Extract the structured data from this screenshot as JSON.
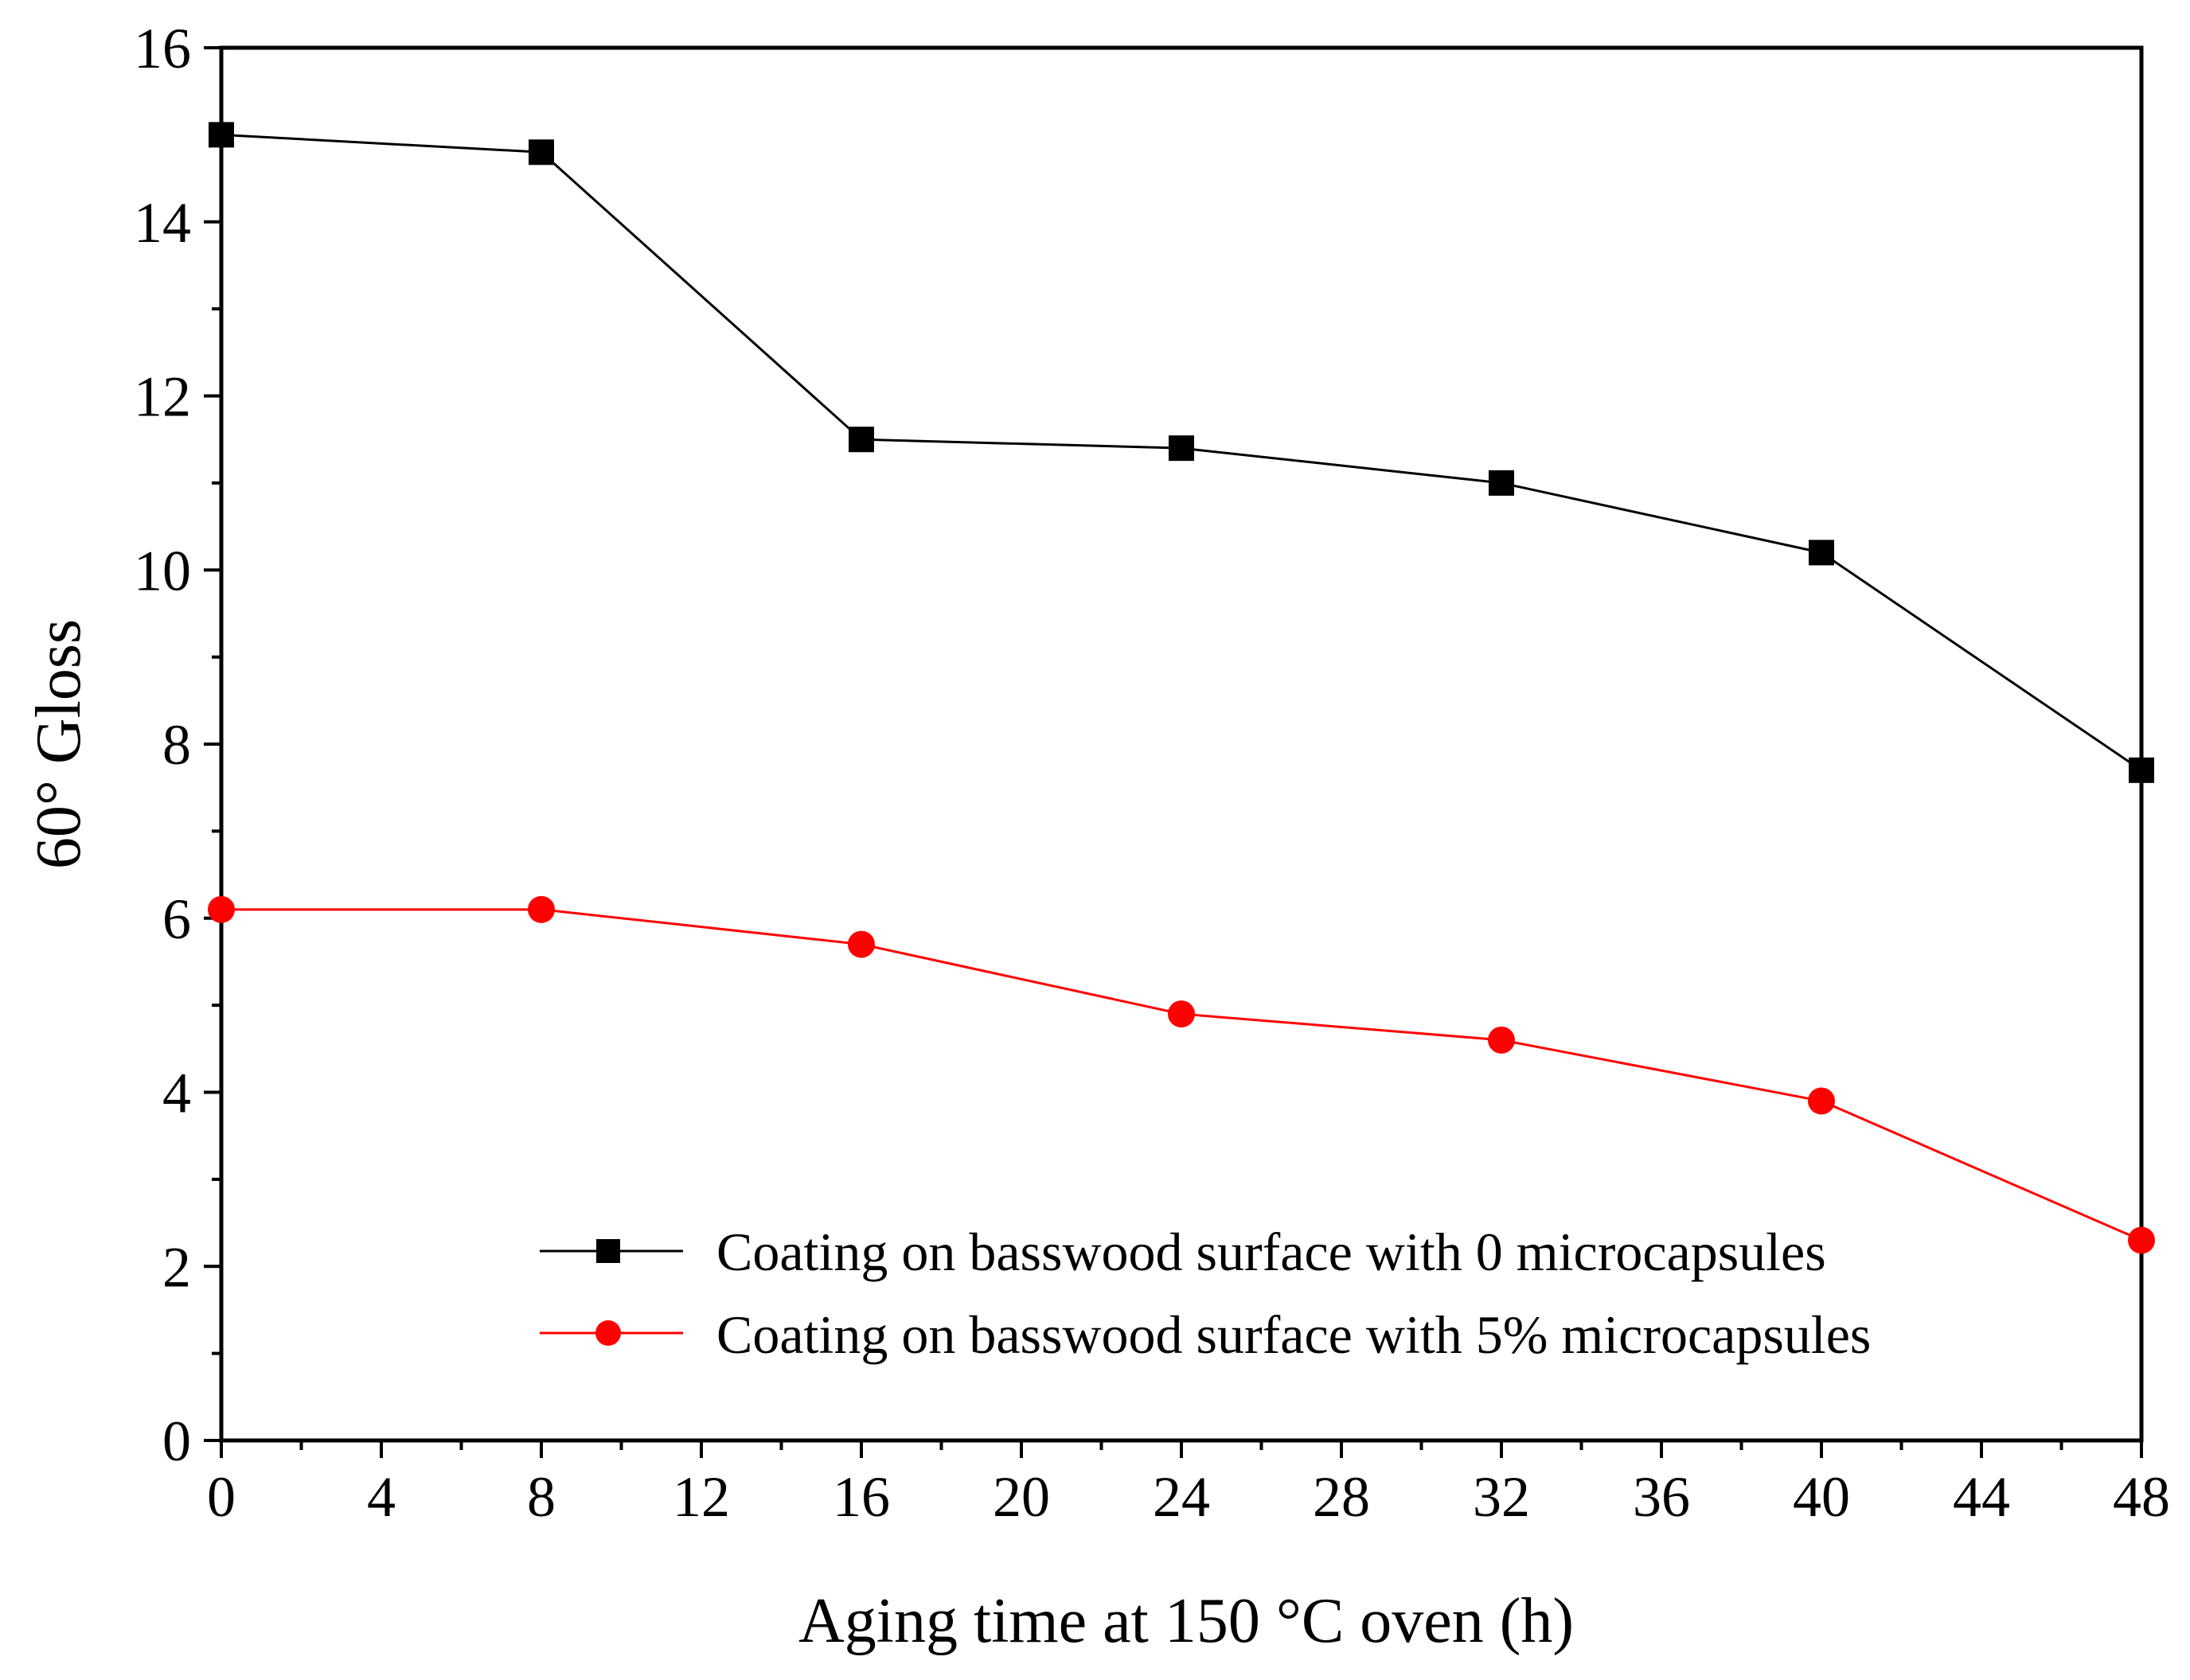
{
  "chart_data": {
    "type": "line",
    "title": "",
    "xlabel": "Aging time at 150 °C oven (h)",
    "ylabel": "60° Gloss",
    "xlim": [
      0,
      48
    ],
    "ylim": [
      0,
      16
    ],
    "xticks": [
      0,
      4,
      8,
      12,
      16,
      20,
      24,
      28,
      32,
      36,
      40,
      44,
      48
    ],
    "yticks": [
      0,
      2,
      4,
      6,
      8,
      10,
      12,
      14,
      16
    ],
    "x_tick_labels": [
      "0",
      "4",
      "8",
      "12",
      "16",
      "20",
      "24",
      "28",
      "32",
      "36",
      "40",
      "44",
      "48"
    ],
    "y_tick_labels": [
      "0",
      "2",
      "4",
      "6",
      "8",
      "10",
      "12",
      "14",
      "16"
    ],
    "grid": false,
    "legend_position": "bottom-right",
    "x": [
      0,
      8,
      16,
      24,
      32,
      40,
      48
    ],
    "series": [
      {
        "name": "Coating on basswood surface with 0 microcapsules",
        "values": [
          15.0,
          14.8,
          11.5,
          11.4,
          11.0,
          10.2,
          7.7
        ],
        "color": "#000000",
        "marker": "square"
      },
      {
        "name": "Coating on basswood surface with 5% microcapsules",
        "values": [
          6.1,
          6.1,
          5.7,
          4.9,
          4.6,
          3.9,
          2.3
        ],
        "color": "#ff0000",
        "marker": "circle"
      }
    ]
  }
}
